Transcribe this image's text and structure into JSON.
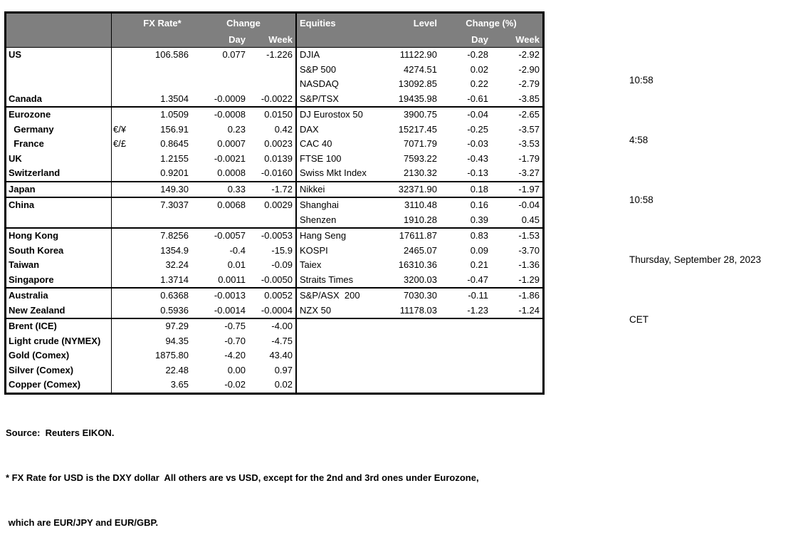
{
  "colors": {
    "header_bg": "#7f7f7f",
    "header_text": "#ffffff",
    "border": "#000000",
    "background": "#ffffff"
  },
  "header": {
    "fx_rate": "FX Rate*",
    "change": "Change",
    "day": "Day",
    "week": "Week",
    "equities": "Equities",
    "level": "Level",
    "change_pct": "Change (%)"
  },
  "groups": [
    {
      "rows": [
        {
          "label": "US",
          "pair": "",
          "fx_rate": "106.586",
          "fx_day": "0.077",
          "fx_week": "-1.226",
          "equity": "DJIA",
          "level": "11122.90",
          "eq_day": "-0.28",
          "eq_week": "-2.92"
        },
        {
          "label": "",
          "pair": "",
          "fx_rate": "",
          "fx_day": "",
          "fx_week": "",
          "equity": "S&P 500",
          "level": "4274.51",
          "eq_day": "0.02",
          "eq_week": "-2.90"
        },
        {
          "label": "",
          "pair": "",
          "fx_rate": "",
          "fx_day": "",
          "fx_week": "",
          "equity": "NASDAQ",
          "level": "13092.85",
          "eq_day": "0.22",
          "eq_week": "-2.79"
        },
        {
          "label": "Canada",
          "pair": "",
          "fx_rate": "1.3504",
          "fx_day": "-0.0009",
          "fx_week": "-0.0022",
          "equity": "S&P/TSX",
          "level": "19435.98",
          "eq_day": "-0.61",
          "eq_week": "-3.85"
        }
      ]
    },
    {
      "rows": [
        {
          "label": "Eurozone",
          "pair": "",
          "fx_rate": "1.0509",
          "fx_day": "-0.0008",
          "fx_week": "0.0150",
          "equity": "DJ Eurostox 50",
          "level": "3900.75",
          "eq_day": "-0.04",
          "eq_week": "-2.65"
        },
        {
          "label": "  Germany",
          "pair": "€/¥",
          "fx_rate": "156.91",
          "fx_day": "0.23",
          "fx_week": "0.42",
          "equity": "DAX",
          "level": "15217.45",
          "eq_day": "-0.25",
          "eq_week": "-3.57"
        },
        {
          "label": "  France",
          "pair": "€/£",
          "fx_rate": "0.8645",
          "fx_day": "0.0007",
          "fx_week": "0.0023",
          "equity": "CAC 40",
          "level": "7071.79",
          "eq_day": "-0.03",
          "eq_week": "-3.53"
        },
        {
          "label": "UK",
          "pair": "",
          "fx_rate": "1.2155",
          "fx_day": "-0.0021",
          "fx_week": "0.0139",
          "equity": "FTSE 100",
          "level": "7593.22",
          "eq_day": "-0.43",
          "eq_week": "-1.79"
        },
        {
          "label": "Switzerland",
          "pair": "",
          "fx_rate": "0.9201",
          "fx_day": "0.0008",
          "fx_week": "-0.0160",
          "equity": "Swiss Mkt Index",
          "level": "2130.32",
          "eq_day": "-0.13",
          "eq_week": "-3.27"
        }
      ]
    },
    {
      "rows": [
        {
          "label": "Japan",
          "pair": "",
          "fx_rate": "149.30",
          "fx_day": "0.33",
          "fx_week": "-1.72",
          "equity": "Nikkei",
          "level": "32371.90",
          "eq_day": "0.18",
          "eq_week": "-1.97"
        }
      ]
    },
    {
      "rows": [
        {
          "label": "China",
          "pair": "",
          "fx_rate": "7.3037",
          "fx_day": "0.0068",
          "fx_week": "0.0029",
          "equity": "Shanghai",
          "level": "3110.48",
          "eq_day": "0.16",
          "eq_week": "-0.04"
        },
        {
          "label": "",
          "pair": "",
          "fx_rate": "",
          "fx_day": "",
          "fx_week": "",
          "equity": "Shenzen",
          "level": "1910.28",
          "eq_day": "0.39",
          "eq_week": "0.45"
        }
      ]
    },
    {
      "rows": [
        {
          "label": "Hong Kong",
          "pair": "",
          "fx_rate": "7.8256",
          "fx_day": "-0.0057",
          "fx_week": "-0.0053",
          "equity": "Hang Seng",
          "level": "17611.87",
          "eq_day": "0.83",
          "eq_week": "-1.53"
        },
        {
          "label": "South Korea",
          "pair": "",
          "fx_rate": "1354.9",
          "fx_day": "-0.4",
          "fx_week": "-15.9",
          "equity": "KOSPI",
          "level": "2465.07",
          "eq_day": "0.09",
          "eq_week": "-3.70"
        },
        {
          "label": "Taiwan",
          "pair": "",
          "fx_rate": "32.24",
          "fx_day": "0.01",
          "fx_week": "-0.09",
          "equity": "Taiex",
          "level": "16310.36",
          "eq_day": "0.21",
          "eq_week": "-1.36"
        },
        {
          "label": "Singapore",
          "pair": "",
          "fx_rate": "1.3714",
          "fx_day": "0.0011",
          "fx_week": "-0.0050",
          "equity": "Straits Times",
          "level": "3200.03",
          "eq_day": "-0.47",
          "eq_week": "-1.29"
        }
      ]
    },
    {
      "rows": [
        {
          "label": "Australia",
          "pair": "",
          "fx_rate": "0.6368",
          "fx_day": "-0.0013",
          "fx_week": "0.0052",
          "equity": "S&P/ASX  200",
          "level": "7030.30",
          "eq_day": "-0.11",
          "eq_week": "-1.86"
        },
        {
          "label": "New Zealand",
          "pair": "",
          "fx_rate": "0.5936",
          "fx_day": "-0.0014",
          "fx_week": "-0.0004",
          "equity": "NZX 50",
          "level": "11178.03",
          "eq_day": "-1.23",
          "eq_week": "-1.24"
        }
      ]
    },
    {
      "rows": [
        {
          "label": "Brent (ICE)",
          "pair": "",
          "fx_rate": "97.29",
          "fx_day": "-0.75",
          "fx_week": "-4.00",
          "equity": "",
          "level": "",
          "eq_day": "",
          "eq_week": ""
        },
        {
          "label": "Light crude (NYMEX)",
          "pair": "",
          "fx_rate": "94.35",
          "fx_day": "-0.70",
          "fx_week": "-4.75",
          "equity": "",
          "level": "",
          "eq_day": "",
          "eq_week": ""
        },
        {
          "label": "Gold (Comex)",
          "pair": "",
          "fx_rate": "1875.80",
          "fx_day": "-4.20",
          "fx_week": "43.40",
          "equity": "",
          "level": "",
          "eq_day": "",
          "eq_week": ""
        },
        {
          "label": "Silver (Comex)",
          "pair": "",
          "fx_rate": "22.48",
          "fx_day": "0.00",
          "fx_week": "0.97",
          "equity": "",
          "level": "",
          "eq_day": "",
          "eq_week": ""
        },
        {
          "label": "Copper (Comex)",
          "pair": "",
          "fx_rate": "3.65",
          "fx_day": "-0.02",
          "fx_week": "0.02",
          "equity": "",
          "level": "",
          "eq_day": "",
          "eq_week": ""
        }
      ]
    }
  ],
  "footer": {
    "source": "Source:  Reuters EIKON.",
    "note1": "* FX Rate for USD is the DXY dollar  All others are vs USD, except for the 2nd and 3rd ones under Eurozone,",
    "note2": " which are EUR/JPY and EUR/GBP."
  },
  "times": [
    "10:58",
    "4:58",
    "10:58",
    "Thursday, September 28, 2023",
    "CET"
  ]
}
